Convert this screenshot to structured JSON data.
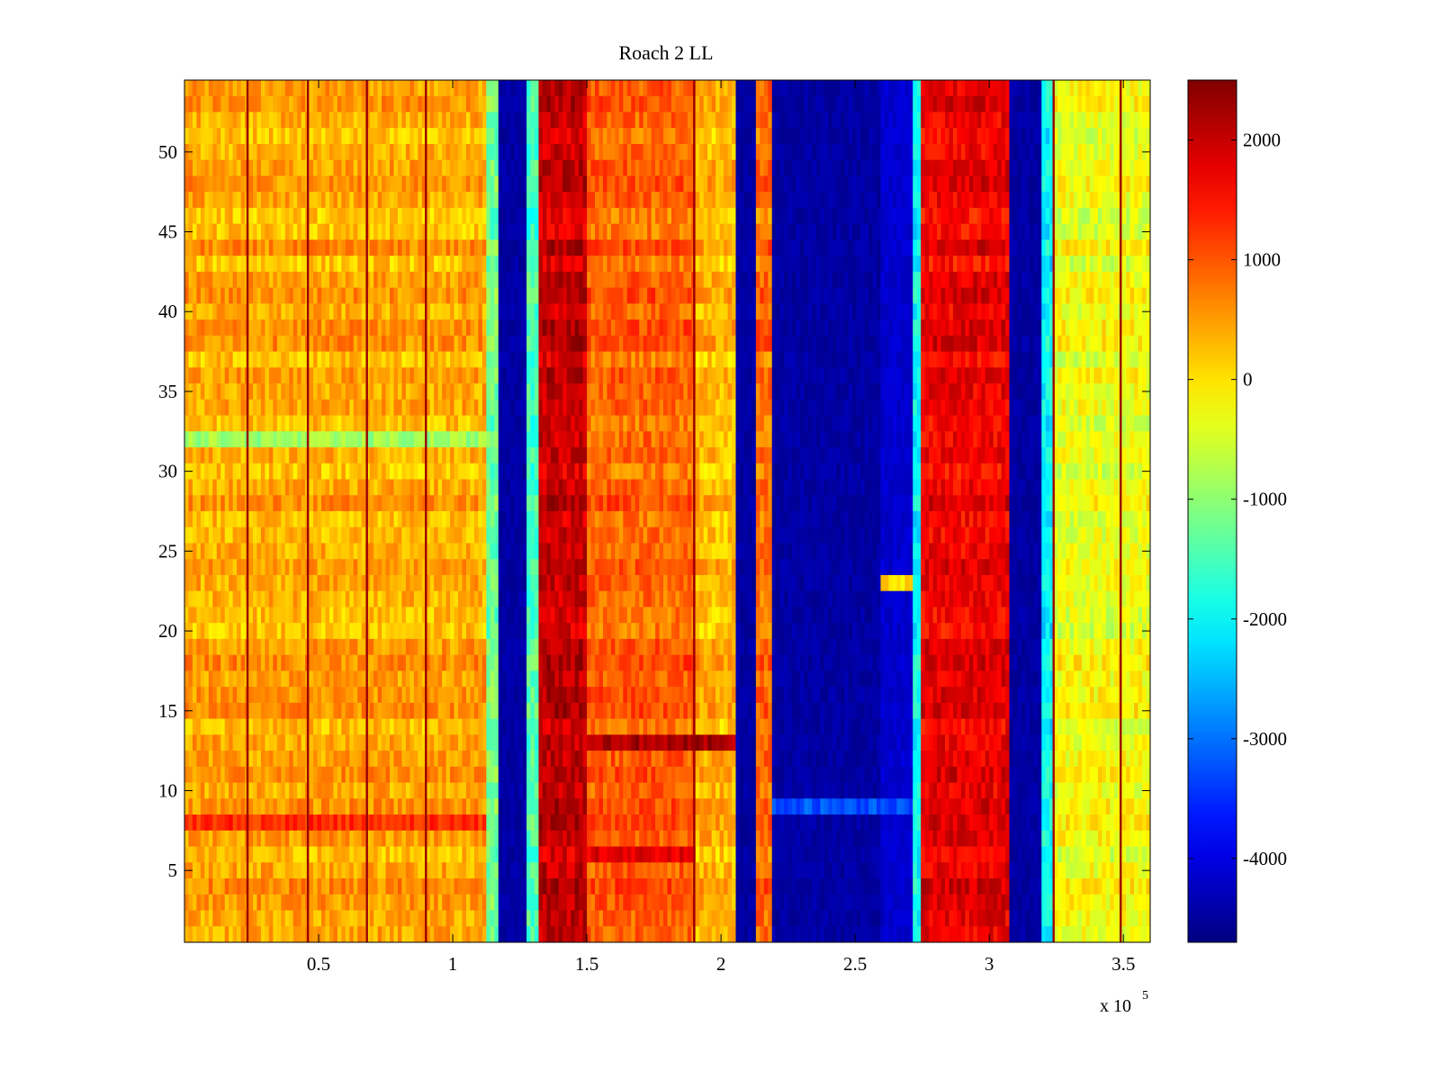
{
  "chart_data": {
    "type": "heatmap",
    "title": "Roach 2 LL",
    "xlabel": "",
    "ylabel": "",
    "x_multiplier_label": {
      "base": "x 10",
      "exponent": "5"
    },
    "xlim": [
      0,
      3.6
    ],
    "ylim": [
      0.5,
      54.5
    ],
    "x_ticks": [
      0.5,
      1,
      1.5,
      2,
      2.5,
      3,
      3.5
    ],
    "x_tick_labels": [
      "0.5",
      "1",
      "1.5",
      "2",
      "2.5",
      "3",
      "3.5"
    ],
    "y_ticks": [
      5,
      10,
      15,
      20,
      25,
      30,
      35,
      40,
      45,
      50
    ],
    "y_tick_labels": [
      "5",
      "10",
      "15",
      "20",
      "25",
      "30",
      "35",
      "40",
      "45",
      "50"
    ],
    "rows": 54,
    "colormap": "jet",
    "clim": [
      -4700,
      2500
    ],
    "colorbar_ticks": [
      2000,
      1000,
      0,
      -1000,
      -2000,
      -3000,
      -4000
    ],
    "colorbar_tick_labels": [
      "2000",
      "1000",
      "0",
      "-1000",
      "-2000",
      "-3000",
      "-4000"
    ],
    "column_bands": [
      {
        "x_start": 0.0,
        "x_end": 1.13,
        "level": 400
      },
      {
        "x_start": 1.13,
        "x_end": 1.17,
        "level": -1200
      },
      {
        "x_start": 1.17,
        "x_end": 1.28,
        "level": -4600
      },
      {
        "x_start": 1.28,
        "x_end": 1.32,
        "level": -1500
      },
      {
        "x_start": 1.32,
        "x_end": 1.5,
        "level": 2000
      },
      {
        "x_start": 1.5,
        "x_end": 1.9,
        "level": 900
      },
      {
        "x_start": 1.9,
        "x_end": 2.05,
        "level": 300
      },
      {
        "x_start": 2.05,
        "x_end": 2.13,
        "level": -4600
      },
      {
        "x_start": 2.13,
        "x_end": 2.19,
        "level": 800
      },
      {
        "x_start": 2.19,
        "x_end": 2.6,
        "level": -4600
      },
      {
        "x_start": 2.6,
        "x_end": 2.72,
        "level": -4300
      },
      {
        "x_start": 2.72,
        "x_end": 2.75,
        "level": -2000
      },
      {
        "x_start": 2.75,
        "x_end": 3.07,
        "level": 1700
      },
      {
        "x_start": 3.07,
        "x_end": 3.19,
        "level": -4600
      },
      {
        "x_start": 3.19,
        "x_end": 3.24,
        "level": -2000
      },
      {
        "x_start": 3.24,
        "x_end": 3.6,
        "level": -300
      }
    ],
    "vertical_lines_x": [
      0.235,
      0.46,
      0.68,
      0.9,
      1.9,
      3.24,
      3.49
    ],
    "row_anomalies": [
      {
        "y": 32,
        "x_start": 0.0,
        "x_end": 1.17,
        "level": -900,
        "note": "speckled cyan row"
      },
      {
        "y": 8,
        "x_start": 0.0,
        "x_end": 1.13,
        "level": 1300
      },
      {
        "y": 13,
        "x_start": 1.5,
        "x_end": 2.05,
        "level": 2200
      },
      {
        "y": 6,
        "x_start": 1.5,
        "x_end": 1.9,
        "level": 1800
      },
      {
        "y": 23,
        "x_start": 2.6,
        "x_end": 2.71,
        "level": 0
      },
      {
        "y": 9,
        "x_start": 2.19,
        "x_end": 2.72,
        "level": -3200
      }
    ]
  }
}
